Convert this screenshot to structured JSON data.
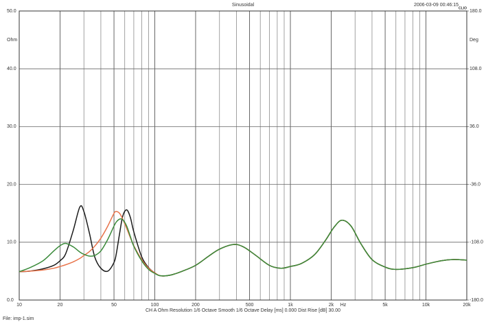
{
  "chart_data": {
    "type": "line",
    "title": "Sinusoidal",
    "timestamp": "2006-03-09 00:46:15",
    "brand": "CLIO",
    "ylabel": "Ohm",
    "y2label": "Deg",
    "xlabel": "Hz",
    "footer": "CH A   Ohm   Resolution 1/6 Octave   Smooth 1/6 Octave   Delay [ms] 0.000   Dist Rise [dB] 30.00",
    "file": "File: imp-1.sim",
    "xscale": "log",
    "grid": true,
    "xlim": [
      10,
      20000
    ],
    "xticks": [
      10,
      20,
      50,
      100,
      200,
      500,
      {
        "value": 1000,
        "label": "1k"
      },
      {
        "value": 2000,
        "label": "2k"
      },
      {
        "value": 5000,
        "label": "5k"
      },
      {
        "value": 10000,
        "label": "10k"
      },
      {
        "value": 20000,
        "label": "20k"
      }
    ],
    "xminor": [
      30,
      40,
      60,
      70,
      80,
      90,
      300,
      400,
      600,
      700,
      800,
      900,
      3000,
      4000,
      6000,
      7000,
      8000,
      9000
    ],
    "ylim": [
      0,
      50
    ],
    "yticks": [
      {
        "value": 0,
        "label": "0.0"
      },
      {
        "value": 10,
        "label": "10.0"
      },
      {
        "value": 20,
        "label": "20.0"
      },
      {
        "value": 30,
        "label": "30.0"
      },
      {
        "value": 40,
        "label": "40.0"
      },
      {
        "value": 50,
        "label": "50.0"
      }
    ],
    "y2lim": [
      -180,
      180
    ],
    "y2ticks": [
      {
        "value": -180,
        "label": "-180.0"
      },
      {
        "value": -108,
        "label": "-108.0"
      },
      {
        "value": -36,
        "label": "-36.0"
      },
      {
        "value": 36,
        "label": "36.0"
      },
      {
        "value": 108,
        "label": "108.0"
      },
      {
        "value": 180,
        "label": "180.0"
      }
    ],
    "x": [
      10,
      12,
      15,
      18,
      20,
      22,
      25,
      28,
      30,
      33,
      36,
      40,
      45,
      50,
      52,
      55,
      58,
      62,
      66,
      70,
      80,
      90,
      100,
      110,
      130,
      160,
      200,
      250,
      300,
      380,
      450,
      550,
      700,
      850,
      1000,
      1200,
      1500,
      1800,
      2100,
      2400,
      2800,
      3300,
      4000,
      5000,
      6000,
      8000,
      10000,
      13000,
      16000,
      20000
    ],
    "series": [
      {
        "name": "black",
        "color": "#1a1a1a",
        "values": [
          4.9,
          5.0,
          5.4,
          6.0,
          6.8,
          8.0,
          12.0,
          16.1,
          15.3,
          11.5,
          7.5,
          5.5,
          5.0,
          6.5,
          8.0,
          11.5,
          14.5,
          15.6,
          14.3,
          11.8,
          7.5,
          5.6,
          4.7,
          4.2,
          4.3,
          5.0,
          6.0,
          7.6,
          8.8,
          9.6,
          9.2,
          7.8,
          6.0,
          5.5,
          5.8,
          6.3,
          7.8,
          10.2,
          12.6,
          13.8,
          12.8,
          9.8,
          7.0,
          5.7,
          5.3,
          5.6,
          6.2,
          6.8,
          7.0,
          6.9
        ]
      },
      {
        "name": "red",
        "color": "#e8734a",
        "values": [
          4.9,
          5.0,
          5.2,
          5.5,
          5.8,
          6.1,
          6.6,
          7.2,
          7.7,
          8.4,
          9.3,
          10.7,
          12.8,
          15.0,
          15.3,
          15.0,
          14.0,
          12.4,
          10.8,
          9.4,
          7.0,
          5.5,
          4.7,
          4.2,
          4.3,
          5.0,
          6.0,
          7.6,
          8.8,
          9.6,
          9.2,
          7.8,
          6.0,
          5.5,
          5.8,
          6.3,
          7.8,
          10.2,
          12.6,
          13.8,
          12.8,
          9.8,
          7.0,
          5.7,
          5.3,
          5.6,
          6.2,
          6.8,
          7.0,
          6.9
        ]
      },
      {
        "name": "green",
        "color": "#3a8a3a",
        "values": [
          4.9,
          5.6,
          6.8,
          8.5,
          9.4,
          9.8,
          9.2,
          8.3,
          7.9,
          7.6,
          7.7,
          8.5,
          10.5,
          12.8,
          13.5,
          14.0,
          13.9,
          12.8,
          11.0,
          9.3,
          6.8,
          5.3,
          4.6,
          4.2,
          4.3,
          5.0,
          6.0,
          7.6,
          8.8,
          9.6,
          9.2,
          7.8,
          6.0,
          5.5,
          5.8,
          6.3,
          7.8,
          10.2,
          12.6,
          13.8,
          12.8,
          9.8,
          7.0,
          5.7,
          5.3,
          5.6,
          6.2,
          6.8,
          7.0,
          6.9
        ]
      }
    ]
  }
}
